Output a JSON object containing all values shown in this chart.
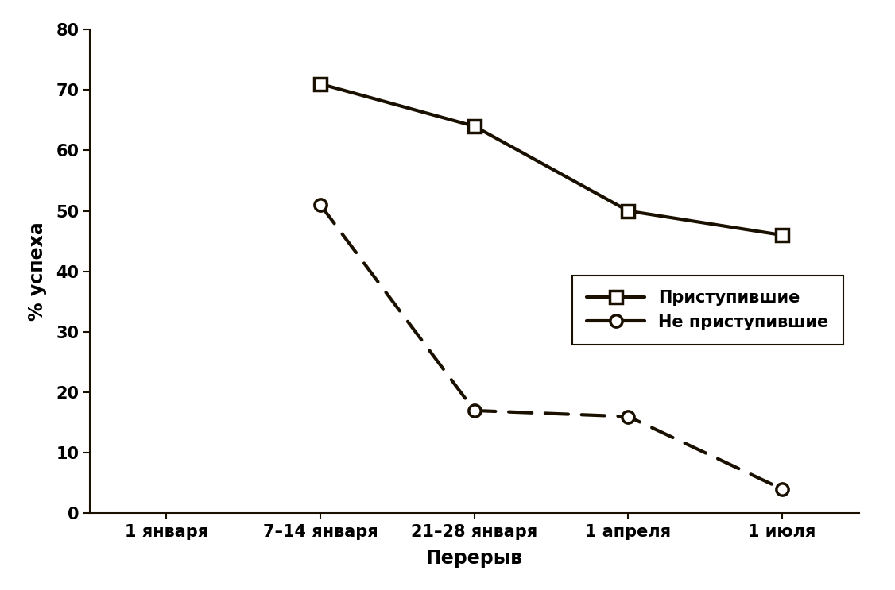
{
  "x_labels": [
    "1 января",
    "7–14 января",
    "21–28 января",
    "1 апреля",
    "1 июля"
  ],
  "x_positions": [
    0,
    1,
    2,
    3,
    4
  ],
  "series1_label": "Приступившие",
  "series1_x": [
    1,
    2,
    3,
    4
  ],
  "series1_y": [
    71,
    64,
    50,
    46
  ],
  "series1_color": "#1a1000",
  "series1_linestyle": "solid",
  "series1_marker": "s",
  "series1_linewidth": 3.0,
  "series1_markersize": 11,
  "series2_label": "Не приступившие",
  "series2_x": [
    1,
    2,
    3,
    4
  ],
  "series2_y": [
    51,
    17,
    16,
    4
  ],
  "series2_color": "#1a1000",
  "series2_linestyle": "dashed",
  "series2_marker": "o",
  "series2_linewidth": 3.0,
  "series2_markersize": 11,
  "ylabel": "% успеха",
  "xlabel": "Перерыв",
  "ylim": [
    0,
    80
  ],
  "yticks": [
    0,
    10,
    20,
    30,
    40,
    50,
    60,
    70,
    80
  ],
  "background_color": "#ffffff",
  "legend_fontsize": 15,
  "axis_fontsize": 17,
  "tick_fontsize": 15
}
